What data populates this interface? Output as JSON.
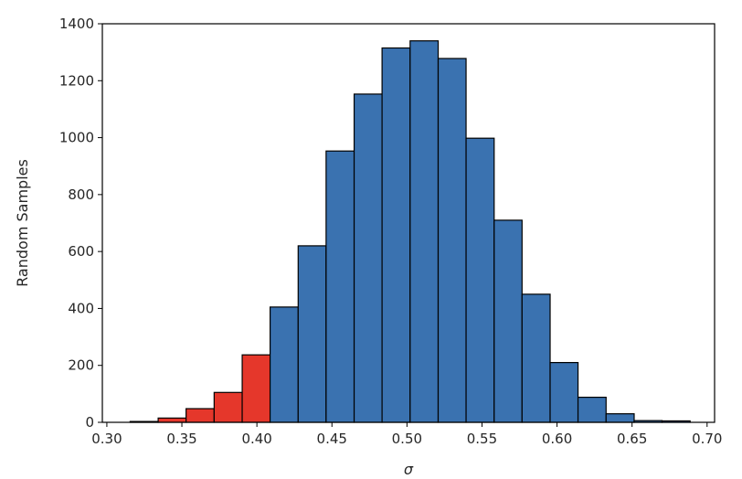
{
  "chart_data": {
    "type": "bar",
    "title": "",
    "xlabel": "σ",
    "ylabel": "Random Samples",
    "xlim": [
      0.297,
      0.705
    ],
    "ylim": [
      0,
      1400
    ],
    "grid": false,
    "x_ticks": [
      "0.30",
      "0.35",
      "0.40",
      "0.45",
      "0.50",
      "0.55",
      "0.60",
      "0.65",
      "0.70"
    ],
    "y_ticks": [
      "0",
      "200",
      "400",
      "600",
      "800",
      "1000",
      "1200",
      "1400"
    ],
    "bin_edges": [
      0.3155,
      0.3342,
      0.3528,
      0.3715,
      0.3902,
      0.4088,
      0.4275,
      0.4461,
      0.4648,
      0.4834,
      0.5021,
      0.5208,
      0.5394,
      0.5581,
      0.5767,
      0.5954,
      0.614,
      0.6327,
      0.6514,
      0.67,
      0.6887
    ],
    "values": [
      3,
      15,
      48,
      105,
      237,
      405,
      620,
      953,
      1153,
      1315,
      1340,
      1278,
      998,
      710,
      450,
      210,
      88,
      30,
      6,
      5
    ],
    "highlight_edge": 0.4088,
    "colors": {
      "highlight": "#e5372b",
      "bars": "#3a72b0",
      "edge": "#000000"
    }
  }
}
